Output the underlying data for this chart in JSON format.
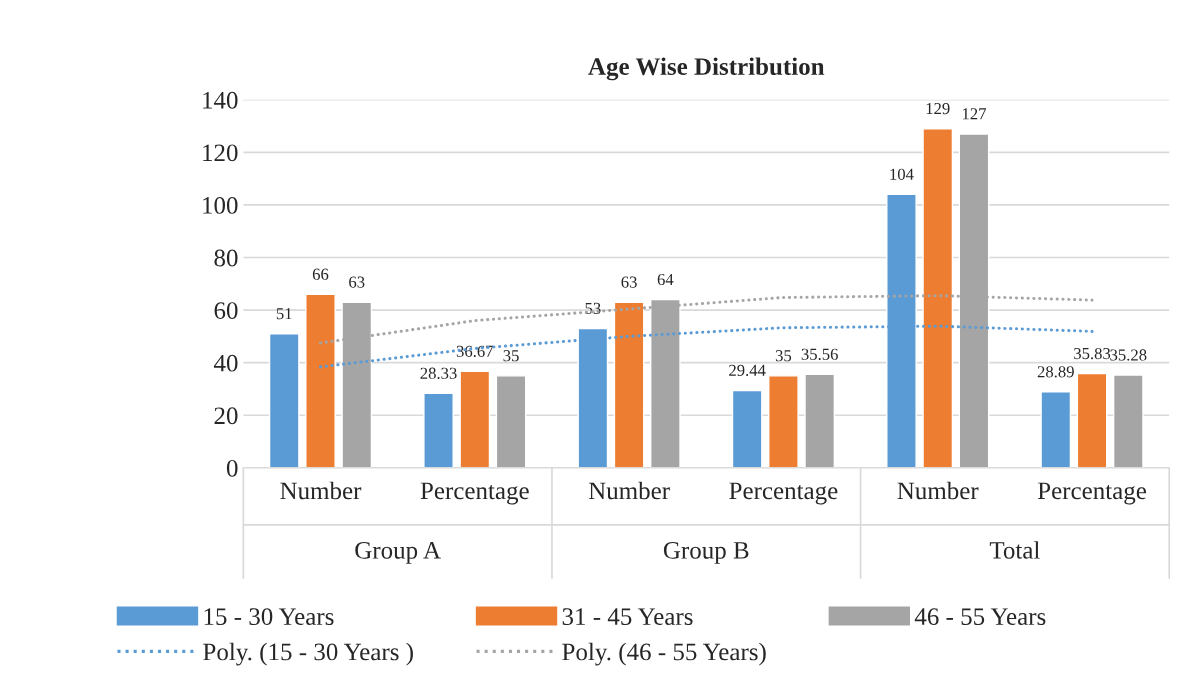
{
  "chart_data": {
    "type": "bar",
    "title": "Age Wise Distribution",
    "categories": [
      "Number",
      "Percentage",
      "Number",
      "Percentage",
      "Number",
      "Percentage"
    ],
    "annotations": [
      "Group A",
      "Group B",
      "Total"
    ],
    "series": [
      {
        "name": "15 - 30 Years",
        "color": "#5b9bd5",
        "values": [
          51,
          28.33,
          53,
          29.44,
          104,
          28.89
        ],
        "value_labels": [
          "51",
          "28.33",
          "53",
          "29.44",
          "104",
          "28.89"
        ]
      },
      {
        "name": "31 - 45 Years",
        "color": "#ed7d31",
        "values": [
          66,
          36.67,
          63,
          35,
          129,
          35.83
        ],
        "value_labels": [
          "66",
          "36.67",
          "63",
          "35",
          "129",
          "35.83"
        ]
      },
      {
        "name": "46 - 55 Years",
        "color": "#a5a5a5",
        "values": [
          63,
          35,
          64,
          35.56,
          127,
          35.28
        ],
        "value_labels": [
          "63",
          "35",
          "64",
          "35.56",
          "127",
          "35.28"
        ]
      },
      {
        "name": "Poly. (15 - 30 Years )",
        "type": "line",
        "line_style": "dotted",
        "color": "#5b9bd5",
        "values": [
          38.4,
          45.4,
          50,
          53.3,
          53.9,
          51.9
        ]
      },
      {
        "name": "Poly. (46 - 55 Years)",
        "type": "line",
        "line_style": "dotted",
        "color": "#a5a5a5",
        "values": [
          47.5,
          56,
          60.4,
          64.8,
          65.5,
          63.8
        ]
      }
    ],
    "ylim": [
      0,
      140
    ],
    "yticks": [
      0,
      20,
      40,
      60,
      80,
      100,
      120,
      140
    ],
    "grid": "y",
    "legend": "bottom"
  }
}
